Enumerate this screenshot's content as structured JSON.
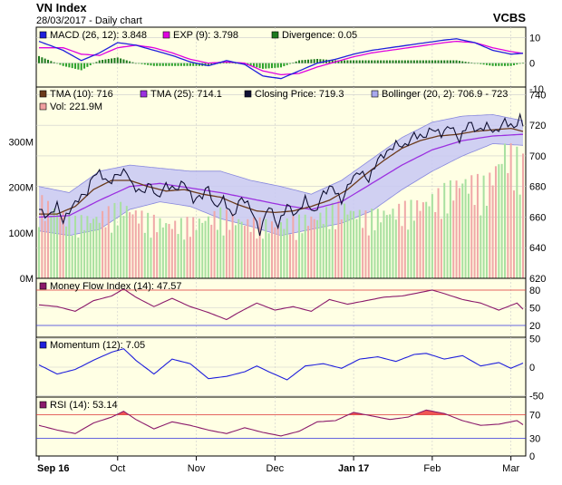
{
  "header": {
    "title": "VN Index",
    "subtitle": "28/03/2017 - Daily chart",
    "source": "VCBS"
  },
  "colors": {
    "panel_bg": "#ffffe4",
    "grid": "#cccccc",
    "boll_fill": "#c8c8f4",
    "boll_edge": "#8888dd",
    "macd": "#1f1fdc",
    "exp": "#e000e0",
    "div_pos": "#1d7a1d",
    "tma10": "#6b3a1a",
    "tma25": "#9b30e0",
    "close": "#111133",
    "vol_up": "#a8e0a0",
    "vol_down": "#f0a8a8",
    "mfi": "#8b1a6b",
    "momentum": "#1f1fdc",
    "rsi": "#8b1a6b",
    "rsi_fill": "#ee4444",
    "ref_red": "#dd3333",
    "ref_blue": "#3333dd"
  },
  "legends": {
    "macd": [
      {
        "label": "MACD (26, 12): 3.848",
        "color": "#1f1fdc"
      },
      {
        "label": "EXP (9): 3.798",
        "color": "#e000e0"
      },
      {
        "label": "Divergence: 0.05",
        "color": "#1d7a1d"
      }
    ],
    "price": [
      {
        "label": "TMA (10): 716",
        "color": "#6b3a1a"
      },
      {
        "label": "TMA (25): 714.1",
        "color": "#9b30e0"
      },
      {
        "label": "Closing Price: 719.3",
        "color": "#111133"
      },
      {
        "label": "Bollinger (20, 2): 706.9 - 723",
        "color": "#a8a8ee"
      },
      {
        "label": "Vol: 221.9M",
        "color": "#f0a0a0"
      }
    ],
    "mfi": [
      {
        "label": "Money Flow Index (14): 47.57",
        "color": "#8b1a6b"
      }
    ],
    "momentum": [
      {
        "label": "Momentum (12): 7.05",
        "color": "#1f1fdc"
      }
    ],
    "rsi": [
      {
        "label": "RSI (14): 53.14",
        "color": "#8b1a6b"
      }
    ]
  },
  "chart_data": {
    "type": "line",
    "x_labels": [
      "Sep 16",
      "Oct",
      "Nov",
      "Dec",
      "Jan 17",
      "Feb",
      "Mar"
    ],
    "panels": {
      "macd": {
        "ylim": [
          -10,
          14
        ],
        "ticks": [
          10,
          0,
          -10
        ]
      },
      "price": {
        "ylim": [
          620,
          745
        ],
        "ticks": [
          740,
          720,
          700,
          680,
          660,
          640,
          620
        ]
      },
      "volume": {
        "ylim": [
          0,
          420
        ],
        "ticks": [
          "300M",
          "200M",
          "100M",
          "0M"
        ]
      },
      "mfi": {
        "ylim": [
          0,
          100
        ],
        "ticks": [
          80,
          50,
          20
        ],
        "ref_lines": [
          80,
          20
        ]
      },
      "momentum": {
        "ylim": [
          -52,
          52
        ],
        "ticks": [
          50,
          0,
          -50
        ]
      },
      "rsi": {
        "ylim": [
          0,
          100
        ],
        "ticks": [
          70,
          30,
          0
        ],
        "ref_lines": [
          70,
          30
        ]
      }
    },
    "close_anchors": [
      [
        0,
        665
      ],
      [
        3,
        660
      ],
      [
        6,
        668
      ],
      [
        8,
        657
      ],
      [
        10,
        664
      ],
      [
        13,
        672
      ],
      [
        16,
        676
      ],
      [
        18,
        688
      ],
      [
        20,
        689
      ],
      [
        23,
        682
      ],
      [
        26,
        688
      ],
      [
        29,
        690
      ],
      [
        31,
        680
      ],
      [
        34,
        676
      ],
      [
        37,
        682
      ],
      [
        39,
        672
      ],
      [
        42,
        681
      ],
      [
        45,
        678
      ],
      [
        48,
        683
      ],
      [
        51,
        671
      ],
      [
        54,
        674
      ],
      [
        56,
        680
      ],
      [
        58,
        666
      ],
      [
        61,
        672
      ],
      [
        64,
        660
      ],
      [
        67,
        673
      ],
      [
        70,
        666
      ],
      [
        73,
        650
      ],
      [
        76,
        668
      ],
      [
        79,
        654
      ],
      [
        82,
        668
      ],
      [
        85,
        661
      ],
      [
        88,
        672
      ],
      [
        91,
        662
      ],
      [
        94,
        676
      ],
      [
        97,
        680
      ],
      [
        100,
        670
      ],
      [
        103,
        684
      ],
      [
        106,
        690
      ],
      [
        109,
        684
      ],
      [
        112,
        698
      ],
      [
        115,
        702
      ],
      [
        118,
        708
      ],
      [
        121,
        706
      ],
      [
        124,
        714
      ],
      [
        127,
        712
      ],
      [
        130,
        718
      ],
      [
        133,
        714
      ],
      [
        136,
        720
      ],
      [
        139,
        710
      ],
      [
        142,
        722
      ],
      [
        145,
        716
      ],
      [
        148,
        720
      ],
      [
        151,
        715
      ],
      [
        154,
        723
      ],
      [
        157,
        718
      ],
      [
        159,
        725
      ],
      [
        160,
        719.3
      ]
    ],
    "tma10_anchors": [
      [
        0,
        662
      ],
      [
        6,
        662
      ],
      [
        12,
        667
      ],
      [
        18,
        678
      ],
      [
        24,
        684
      ],
      [
        30,
        684
      ],
      [
        36,
        680
      ],
      [
        42,
        677
      ],
      [
        48,
        678
      ],
      [
        54,
        675
      ],
      [
        60,
        673
      ],
      [
        66,
        668
      ],
      [
        72,
        664
      ],
      [
        78,
        663
      ],
      [
        84,
        664
      ],
      [
        90,
        667
      ],
      [
        96,
        671
      ],
      [
        102,
        678
      ],
      [
        108,
        688
      ],
      [
        114,
        697
      ],
      [
        120,
        705
      ],
      [
        126,
        710
      ],
      [
        132,
        713
      ],
      [
        138,
        714
      ],
      [
        144,
        716
      ],
      [
        150,
        717
      ],
      [
        156,
        718
      ],
      [
        160,
        716
      ]
    ],
    "tma25_anchors": [
      [
        0,
        660
      ],
      [
        10,
        661
      ],
      [
        20,
        671
      ],
      [
        30,
        680
      ],
      [
        40,
        682
      ],
      [
        50,
        679
      ],
      [
        60,
        676
      ],
      [
        70,
        672
      ],
      [
        80,
        668
      ],
      [
        90,
        665
      ],
      [
        100,
        670
      ],
      [
        110,
        682
      ],
      [
        120,
        694
      ],
      [
        130,
        704
      ],
      [
        140,
        710
      ],
      [
        150,
        713
      ],
      [
        160,
        714.1
      ]
    ],
    "boll_upper_anchors": [
      [
        0,
        680
      ],
      [
        10,
        676
      ],
      [
        20,
        690
      ],
      [
        30,
        694
      ],
      [
        40,
        692
      ],
      [
        50,
        690
      ],
      [
        60,
        690
      ],
      [
        70,
        684
      ],
      [
        80,
        680
      ],
      [
        90,
        675
      ],
      [
        100,
        684
      ],
      [
        110,
        698
      ],
      [
        120,
        712
      ],
      [
        130,
        722
      ],
      [
        140,
        726
      ],
      [
        150,
        727
      ],
      [
        160,
        723
      ]
    ],
    "boll_lower_anchors": [
      [
        0,
        651
      ],
      [
        10,
        648
      ],
      [
        20,
        652
      ],
      [
        30,
        665
      ],
      [
        40,
        670
      ],
      [
        50,
        667
      ],
      [
        60,
        659
      ],
      [
        70,
        654
      ],
      [
        80,
        648
      ],
      [
        90,
        652
      ],
      [
        100,
        656
      ],
      [
        110,
        664
      ],
      [
        120,
        678
      ],
      [
        130,
        690
      ],
      [
        140,
        700
      ],
      [
        150,
        708
      ],
      [
        160,
        706.9
      ]
    ],
    "macd_anchors": [
      [
        0,
        8.5
      ],
      [
        8,
        5
      ],
      [
        14,
        1
      ],
      [
        20,
        4
      ],
      [
        26,
        8
      ],
      [
        32,
        7
      ],
      [
        38,
        5
      ],
      [
        44,
        3
      ],
      [
        50,
        0.5
      ],
      [
        56,
        -1
      ],
      [
        62,
        1
      ],
      [
        68,
        -0.5
      ],
      [
        74,
        -5
      ],
      [
        80,
        -6
      ],
      [
        86,
        -3
      ],
      [
        92,
        0
      ],
      [
        98,
        1.5
      ],
      [
        104,
        3.5
      ],
      [
        110,
        5
      ],
      [
        116,
        6
      ],
      [
        122,
        7
      ],
      [
        128,
        8
      ],
      [
        134,
        9
      ],
      [
        138,
        9.5
      ],
      [
        144,
        8
      ],
      [
        150,
        5
      ],
      [
        156,
        3.5
      ],
      [
        160,
        3.848
      ]
    ],
    "exp_anchors": [
      [
        0,
        6
      ],
      [
        8,
        6
      ],
      [
        14,
        3.5
      ],
      [
        20,
        3
      ],
      [
        26,
        6
      ],
      [
        32,
        7
      ],
      [
        38,
        6
      ],
      [
        44,
        4
      ],
      [
        50,
        1.5
      ],
      [
        56,
        0
      ],
      [
        62,
        0.5
      ],
      [
        68,
        0
      ],
      [
        74,
        -3
      ],
      [
        80,
        -4.5
      ],
      [
        86,
        -4
      ],
      [
        92,
        -1.5
      ],
      [
        98,
        0.5
      ],
      [
        104,
        2.5
      ],
      [
        110,
        4
      ],
      [
        116,
        5
      ],
      [
        122,
        6
      ],
      [
        128,
        7
      ],
      [
        134,
        8
      ],
      [
        138,
        8.5
      ],
      [
        144,
        8
      ],
      [
        150,
        6
      ],
      [
        156,
        4.5
      ],
      [
        160,
        3.798
      ]
    ],
    "volume_anchors": [
      [
        0,
        150
      ],
      [
        12,
        110
      ],
      [
        20,
        120
      ],
      [
        28,
        140
      ],
      [
        36,
        115
      ],
      [
        44,
        105
      ],
      [
        52,
        110
      ],
      [
        60,
        125
      ],
      [
        68,
        110
      ],
      [
        76,
        105
      ],
      [
        84,
        110
      ],
      [
        92,
        120
      ],
      [
        100,
        140
      ],
      [
        108,
        120
      ],
      [
        116,
        130
      ],
      [
        124,
        140
      ],
      [
        132,
        160
      ],
      [
        140,
        190
      ],
      [
        148,
        180
      ],
      [
        154,
        250
      ],
      [
        160,
        221.9
      ]
    ],
    "mfi_anchors": [
      [
        0,
        55
      ],
      [
        6,
        52
      ],
      [
        12,
        44
      ],
      [
        18,
        62
      ],
      [
        24,
        70
      ],
      [
        28,
        82
      ],
      [
        32,
        68
      ],
      [
        38,
        52
      ],
      [
        44,
        66
      ],
      [
        50,
        52
      ],
      [
        56,
        42
      ],
      [
        62,
        30
      ],
      [
        66,
        42
      ],
      [
        72,
        58
      ],
      [
        78,
        46
      ],
      [
        84,
        52
      ],
      [
        90,
        44
      ],
      [
        96,
        64
      ],
      [
        102,
        56
      ],
      [
        108,
        62
      ],
      [
        114,
        68
      ],
      [
        120,
        70
      ],
      [
        126,
        76
      ],
      [
        130,
        80
      ],
      [
        134,
        74
      ],
      [
        140,
        64
      ],
      [
        146,
        58
      ],
      [
        152,
        46
      ],
      [
        158,
        58
      ],
      [
        160,
        47.57
      ]
    ],
    "momentum_anchors": [
      [
        0,
        4
      ],
      [
        6,
        -12
      ],
      [
        12,
        -4
      ],
      [
        18,
        12
      ],
      [
        24,
        26
      ],
      [
        28,
        32
      ],
      [
        32,
        12
      ],
      [
        38,
        -12
      ],
      [
        44,
        14
      ],
      [
        50,
        6
      ],
      [
        56,
        -20
      ],
      [
        62,
        -16
      ],
      [
        68,
        -8
      ],
      [
        72,
        2
      ],
      [
        76,
        -8
      ],
      [
        82,
        -22
      ],
      [
        88,
        2
      ],
      [
        94,
        6
      ],
      [
        100,
        -2
      ],
      [
        106,
        14
      ],
      [
        112,
        18
      ],
      [
        118,
        10
      ],
      [
        124,
        22
      ],
      [
        128,
        24
      ],
      [
        134,
        14
      ],
      [
        140,
        20
      ],
      [
        146,
        2
      ],
      [
        152,
        8
      ],
      [
        156,
        -2
      ],
      [
        160,
        7.05
      ]
    ],
    "rsi_anchors": [
      [
        0,
        52
      ],
      [
        6,
        44
      ],
      [
        12,
        38
      ],
      [
        18,
        56
      ],
      [
        24,
        66
      ],
      [
        28,
        76
      ],
      [
        32,
        62
      ],
      [
        38,
        46
      ],
      [
        44,
        58
      ],
      [
        50,
        52
      ],
      [
        56,
        44
      ],
      [
        62,
        38
      ],
      [
        68,
        48
      ],
      [
        74,
        40
      ],
      [
        80,
        34
      ],
      [
        86,
        42
      ],
      [
        92,
        58
      ],
      [
        98,
        60
      ],
      [
        104,
        74
      ],
      [
        110,
        68
      ],
      [
        116,
        62
      ],
      [
        122,
        66
      ],
      [
        128,
        78
      ],
      [
        134,
        72
      ],
      [
        140,
        60
      ],
      [
        146,
        52
      ],
      [
        152,
        54
      ],
      [
        158,
        60
      ],
      [
        160,
        53.14
      ]
    ]
  }
}
